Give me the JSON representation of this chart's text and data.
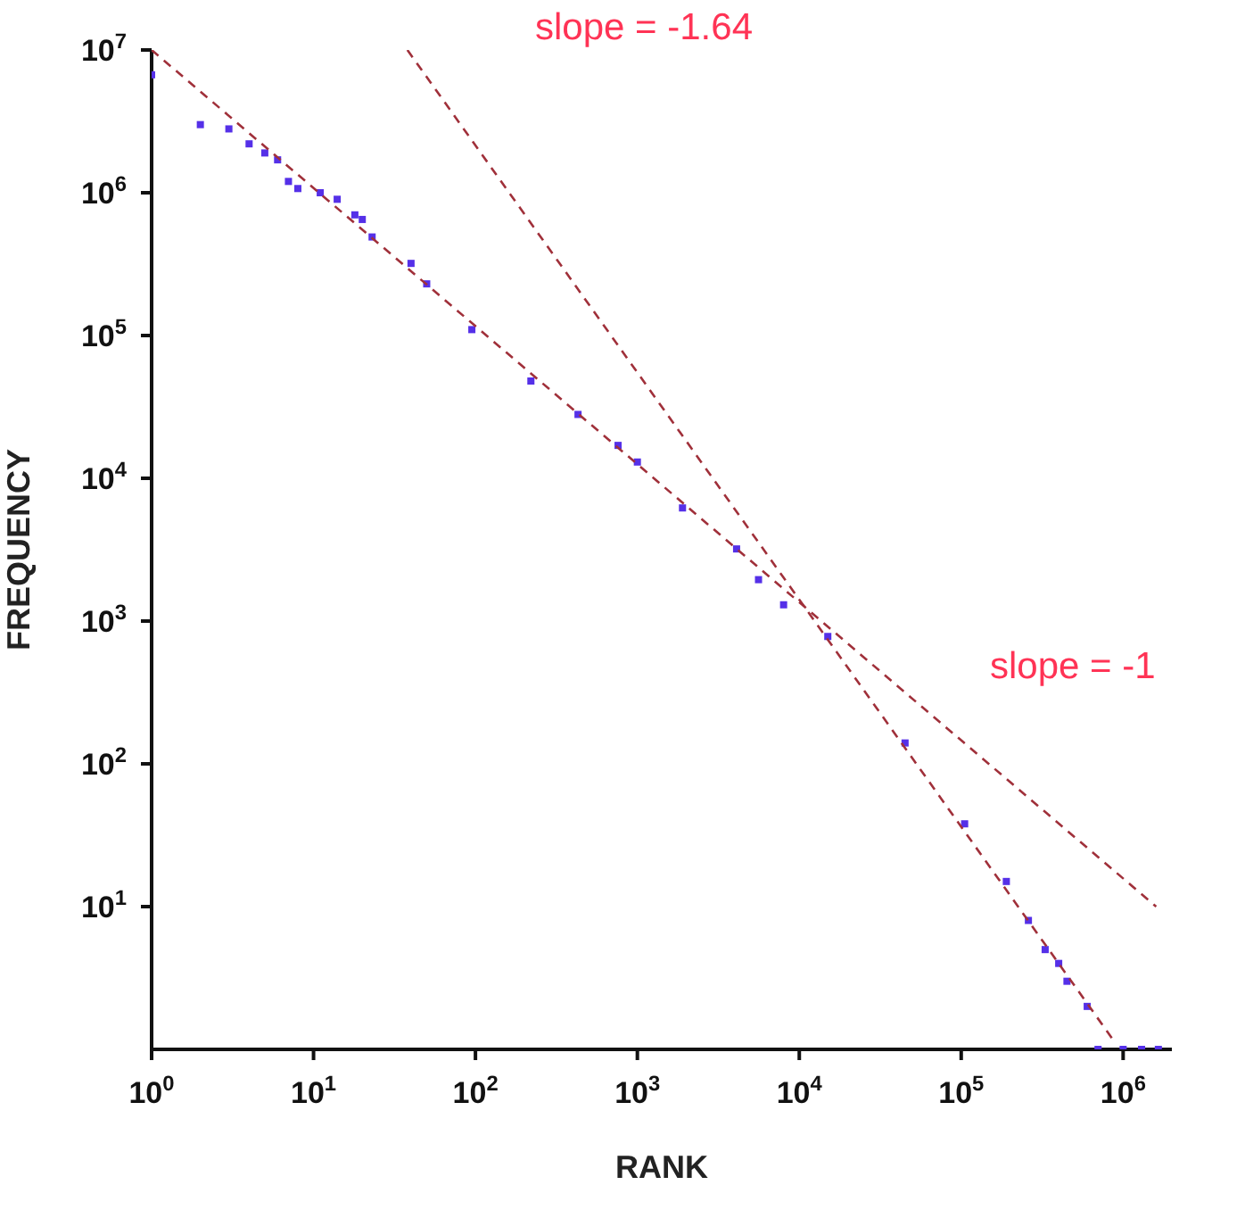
{
  "chart_data": {
    "type": "scatter",
    "xlabel": "RANK",
    "ylabel": "FREQUENCY",
    "log": "xy",
    "marker": "square",
    "xlim": [
      1,
      2000000
    ],
    "ylim": [
      1,
      10000000
    ],
    "xticks": [
      {
        "value": 1,
        "label": "10$^{0}$"
      },
      {
        "value": 10,
        "label": "10$^{1}$"
      },
      {
        "value": 100,
        "label": "10$^{2}$"
      },
      {
        "value": 1000,
        "label": "10$^{3}$"
      },
      {
        "value": 10000,
        "label": "10$^{4}$"
      },
      {
        "value": 100000,
        "label": "10$^{5}$"
      },
      {
        "value": 1000000,
        "label": "10$^{6}$"
      }
    ],
    "yticks": [
      {
        "value": 10,
        "label": "10$^{1}$"
      },
      {
        "value": 100,
        "label": "10$^{2}$"
      },
      {
        "value": 1000,
        "label": "10$^{3}$"
      },
      {
        "value": 10000,
        "label": "10$^{4}$"
      },
      {
        "value": 100000,
        "label": "10$^{5}$"
      },
      {
        "value": 1000000,
        "label": "10$^{6}$"
      },
      {
        "value": 10000000,
        "label": "10$^{7}$"
      }
    ],
    "series": [
      {
        "color": "#5530e8",
        "x": [
          1,
          2,
          3,
          4,
          5,
          6,
          7,
          8,
          11,
          14,
          18,
          20,
          23,
          40,
          50,
          95,
          220,
          430,
          760,
          1000,
          1900,
          4100,
          5600,
          8000,
          15000,
          45000,
          105000,
          190000,
          260000,
          330000,
          400000,
          450000,
          600000,
          700000,
          1000000,
          1300000,
          1650000
        ],
        "values": [
          6700000,
          3000000,
          2800000,
          2200000,
          1900000,
          1700000,
          1200000,
          1070000,
          1000000,
          900000,
          700000,
          650000,
          490000,
          320000,
          230000,
          110000,
          48000,
          28000,
          17000,
          13000,
          6200,
          3200,
          1950,
          1300,
          780,
          140,
          38,
          15,
          8,
          5,
          4,
          3,
          2,
          1,
          1,
          1,
          1
        ]
      },
      {
        "type": "line",
        "color": "#a0303a",
        "line_style": "dashed",
        "marker": "none",
        "x": [
          1,
          1600000
        ],
        "values": [
          10000000,
          10
        ]
      },
      {
        "type": "line",
        "color": "#a0303a",
        "line_style": "dashed",
        "marker": "none",
        "x": [
          38,
          900000
        ],
        "values": [
          10000000,
          1.1
        ]
      }
    ],
    "annotations": [
      "slope = -1.64",
      "slope = -1"
    ]
  }
}
